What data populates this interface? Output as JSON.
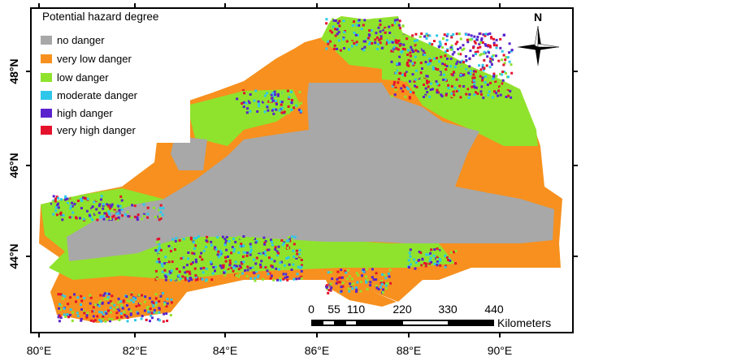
{
  "legend": {
    "title": "Potential hazard degree",
    "items": [
      {
        "label": "no danger",
        "color": "#a8a8a8"
      },
      {
        "label": "very low danger",
        "color": "#f7901e"
      },
      {
        "label": "low danger",
        "color": "#8fe32d"
      },
      {
        "label": "moderate danger",
        "color": "#2ec7ea"
      },
      {
        "label": "high danger",
        "color": "#5a22cc"
      },
      {
        "label": "very high danger",
        "color": "#e4122c"
      }
    ]
  },
  "north_label": "N",
  "longitude_labels": [
    "80°E",
    "82°E",
    "84°E",
    "86°E",
    "88°E",
    "90°E"
  ],
  "latitude_labels": [
    "48°N",
    "46°N",
    "44°N"
  ],
  "scale_bar": {
    "labels": [
      0,
      55,
      110,
      220,
      330,
      440
    ],
    "unit": "Kilometers"
  }
}
